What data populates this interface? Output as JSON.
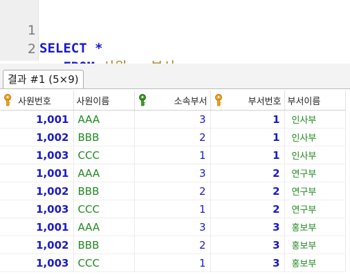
{
  "editor": {
    "lines": [
      {
        "number": "1",
        "tokens": {
          "select": "SELECT",
          "star": "*"
        }
      },
      {
        "number": "2",
        "tokens": {
          "from": "FROM",
          "t1": "사원",
          "comma": ",",
          "t2": "부서",
          "semicolon": ";"
        }
      }
    ]
  },
  "results": {
    "tab_label": "결과 #1 (5×9)",
    "columns": [
      {
        "label": "사원번호",
        "key_icon": "key-icon-orange"
      },
      {
        "label": "사원이름",
        "key_icon": ""
      },
      {
        "label": "소속부서",
        "key_icon": "key-icon-green"
      },
      {
        "label": "부서번호",
        "key_icon": "key-icon-orange"
      },
      {
        "label": "부서이름",
        "key_icon": ""
      }
    ],
    "rows": [
      [
        "1,001",
        "AAA",
        "3",
        "1",
        "인사부"
      ],
      [
        "1,002",
        "BBB",
        "2",
        "1",
        "인사부"
      ],
      [
        "1,003",
        "CCC",
        "1",
        "1",
        "인사부"
      ],
      [
        "1,001",
        "AAA",
        "3",
        "2",
        "연구부"
      ],
      [
        "1,002",
        "BBB",
        "2",
        "2",
        "연구부"
      ],
      [
        "1,003",
        "CCC",
        "1",
        "2",
        "연구부"
      ],
      [
        "1,001",
        "AAA",
        "3",
        "3",
        "홍보부"
      ],
      [
        "1,002",
        "BBB",
        "2",
        "3",
        "홍보부"
      ],
      [
        "1,003",
        "CCC",
        "1",
        "3",
        "홍보부"
      ]
    ]
  },
  "colors": {
    "keyword": "#1a1acc",
    "identifier": "#a67c1a",
    "text_value": "#1e8a1e",
    "primary_key": "#f0a020",
    "foreign_key": "#3a9a2a"
  }
}
